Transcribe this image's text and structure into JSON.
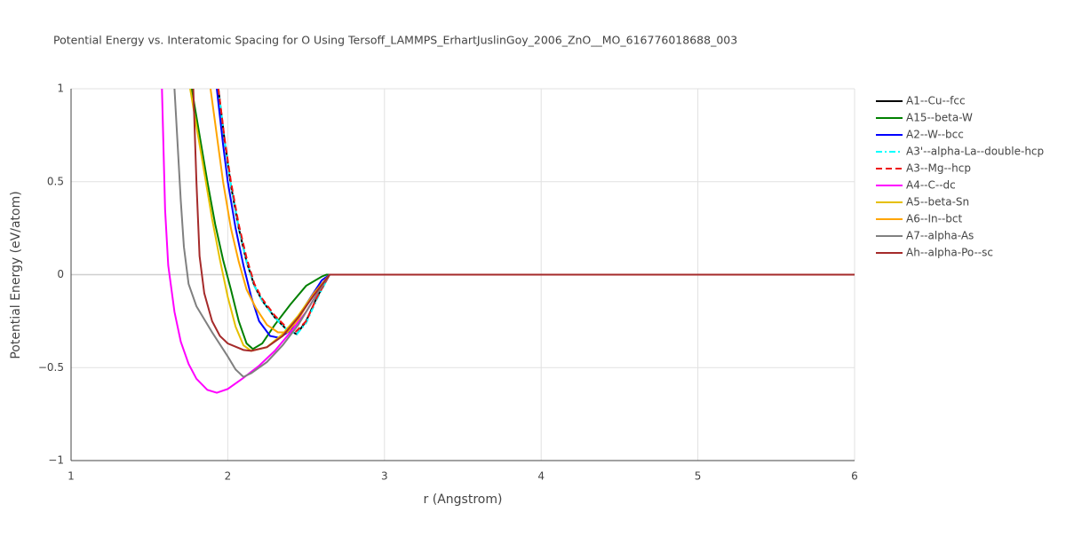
{
  "chart_data": {
    "type": "line",
    "title": "Potential Energy vs. Interatomic Spacing for O Using Tersoff_LAMMPS_ErhartJuslinGoy_2006_ZnO__MO_616776018688_003",
    "x_label": "r (Angstrom)",
    "y_label": "Potential Energy (eV/atom)",
    "xlim": [
      1,
      6
    ],
    "ylim": [
      -1,
      1
    ],
    "xticks": [
      1,
      2,
      3,
      4,
      5,
      6
    ],
    "yticks": [
      {
        "value": -1,
        "label": "−1"
      },
      {
        "value": -0.5,
        "label": "−0.5"
      },
      0,
      0.5,
      1
    ],
    "grid": true,
    "legend": "right",
    "series": [
      {
        "name": "A1--Cu--fcc",
        "color": "#000000",
        "dash": "solid",
        "x": [
          1.94,
          1.98,
          2.02,
          2.07,
          2.12,
          2.17,
          2.22,
          2.3,
          2.37,
          2.44,
          2.5,
          2.57,
          2.65,
          6
        ],
        "values": [
          1,
          0.72,
          0.48,
          0.25,
          0.07,
          -0.06,
          -0.14,
          -0.23,
          -0.29,
          -0.32,
          -0.25,
          -0.12,
          0,
          0
        ]
      },
      {
        "name": "A15--beta-W",
        "color": "#008000",
        "dash": "solid",
        "x": [
          1.77,
          1.82,
          1.87,
          1.92,
          1.97,
          2.02,
          2.07,
          2.12,
          2.16,
          2.22,
          2.3,
          2.4,
          2.5,
          2.6,
          2.63,
          6
        ],
        "values": [
          1,
          0.75,
          0.5,
          0.27,
          0.08,
          -0.08,
          -0.25,
          -0.37,
          -0.4,
          -0.37,
          -0.27,
          -0.16,
          -0.06,
          -0.01,
          0,
          0
        ]
      },
      {
        "name": "A2--W--bcc",
        "color": "#0000ff",
        "dash": "solid",
        "x": [
          1.93,
          1.97,
          2.0,
          2.05,
          2.1,
          2.15,
          2.2,
          2.27,
          2.33,
          2.4,
          2.5,
          2.6,
          2.65,
          6
        ],
        "values": [
          1,
          0.7,
          0.5,
          0.25,
          0.05,
          -0.12,
          -0.25,
          -0.33,
          -0.34,
          -0.3,
          -0.16,
          -0.03,
          0,
          0
        ]
      },
      {
        "name": "A3'--alpha-La--double-hcp",
        "color": "#00ffff",
        "dash": "dashdot",
        "x": [
          1.94,
          1.98,
          2.02,
          2.07,
          2.12,
          2.17,
          2.22,
          2.3,
          2.37,
          2.44,
          2.5,
          2.57,
          2.65,
          6
        ],
        "values": [
          1,
          0.72,
          0.48,
          0.25,
          0.07,
          -0.06,
          -0.14,
          -0.23,
          -0.29,
          -0.32,
          -0.26,
          -0.13,
          0,
          0
        ]
      },
      {
        "name": "A3--Mg--hcp",
        "color": "#ee1111",
        "dash": "dash",
        "x": [
          1.94,
          1.98,
          2.02,
          2.07,
          2.12,
          2.17,
          2.22,
          2.3,
          2.37,
          2.43,
          2.5,
          2.57,
          2.65,
          6
        ],
        "values": [
          1,
          0.73,
          0.5,
          0.27,
          0.09,
          -0.05,
          -0.13,
          -0.22,
          -0.28,
          -0.31,
          -0.25,
          -0.12,
          0,
          0
        ]
      },
      {
        "name": "A4--C--dc",
        "color": "#ff00ff",
        "dash": "solid",
        "x": [
          1.58,
          1.6,
          1.62,
          1.66,
          1.7,
          1.75,
          1.8,
          1.87,
          1.93,
          2.0,
          2.1,
          2.2,
          2.3,
          2.4,
          2.5,
          2.6,
          2.65,
          6
        ],
        "values": [
          1,
          0.35,
          0.05,
          -0.2,
          -0.36,
          -0.48,
          -0.56,
          -0.62,
          -0.635,
          -0.615,
          -0.555,
          -0.49,
          -0.41,
          -0.31,
          -0.2,
          -0.06,
          0,
          0
        ]
      },
      {
        "name": "A5--beta-Sn",
        "color": "#e6c000",
        "dash": "solid",
        "x": [
          1.76,
          1.8,
          1.85,
          1.9,
          1.95,
          2.0,
          2.05,
          2.1,
          2.15,
          2.25,
          2.35,
          2.45,
          2.55,
          2.65,
          6
        ],
        "values": [
          1,
          0.8,
          0.55,
          0.3,
          0.08,
          -0.12,
          -0.28,
          -0.38,
          -0.41,
          -0.39,
          -0.32,
          -0.22,
          -0.1,
          0,
          0
        ]
      },
      {
        "name": "A6--In--bct",
        "color": "#ffa500",
        "dash": "solid",
        "x": [
          1.89,
          1.93,
          1.97,
          2.02,
          2.07,
          2.12,
          2.18,
          2.25,
          2.32,
          2.38,
          2.45,
          2.55,
          2.65,
          6
        ],
        "values": [
          1,
          0.75,
          0.5,
          0.25,
          0.07,
          -0.08,
          -0.18,
          -0.27,
          -0.31,
          -0.31,
          -0.24,
          -0.1,
          0,
          0
        ]
      },
      {
        "name": "A7--alpha-As",
        "color": "#808080",
        "dash": "solid",
        "x": [
          1.66,
          1.68,
          1.7,
          1.72,
          1.75,
          1.8,
          1.9,
          2.0,
          2.05,
          2.1,
          2.15,
          2.25,
          2.35,
          2.45,
          2.55,
          2.65,
          6
        ],
        "values": [
          1,
          0.7,
          0.4,
          0.15,
          -0.05,
          -0.17,
          -0.31,
          -0.44,
          -0.51,
          -0.55,
          -0.53,
          -0.47,
          -0.38,
          -0.27,
          -0.13,
          0,
          0
        ]
      },
      {
        "name": "Ah--alpha-Po--sc",
        "color": "#a52a2a",
        "dash": "solid",
        "x": [
          1.78,
          1.8,
          1.82,
          1.85,
          1.9,
          1.95,
          2.0,
          2.1,
          2.15,
          2.25,
          2.35,
          2.45,
          2.55,
          2.65,
          6
        ],
        "values": [
          1,
          0.5,
          0.1,
          -0.1,
          -0.25,
          -0.33,
          -0.37,
          -0.405,
          -0.41,
          -0.39,
          -0.33,
          -0.23,
          -0.11,
          0,
          0
        ]
      }
    ]
  }
}
